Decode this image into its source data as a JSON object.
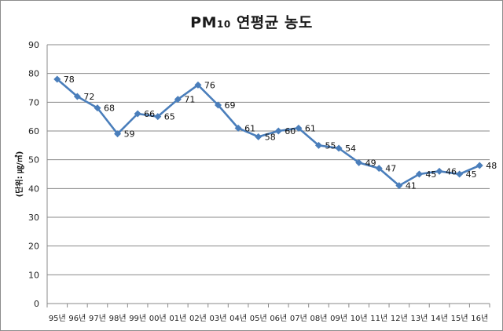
{
  "chart_data": {
    "type": "line",
    "title_main": "PM",
    "title_sub": "10",
    "title_rest": " 연평균 농도",
    "ylabel": "(단위: ㎍/㎥)",
    "xlabel": "",
    "ylim": [
      0,
      90
    ],
    "yticks": [
      "0",
      "10",
      "20",
      "30",
      "40",
      "50",
      "60",
      "70",
      "80",
      "90"
    ],
    "grid": true,
    "categories": [
      "95년",
      "96년",
      "97년",
      "98년",
      "99년",
      "00년",
      "01년",
      "02년",
      "03년",
      "04년",
      "05년",
      "06년",
      "07년",
      "08년",
      "09년",
      "10년",
      "11년",
      "12년",
      "13년",
      "14년",
      "15년",
      "16년"
    ],
    "series": [
      {
        "values": [
          78,
          72,
          68,
          59,
          66,
          65,
          71,
          76,
          69,
          61,
          58,
          60,
          61,
          55,
          54,
          49,
          47,
          41,
          45,
          46,
          45,
          48
        ]
      }
    ],
    "line_color": "#4a7ebb"
  }
}
